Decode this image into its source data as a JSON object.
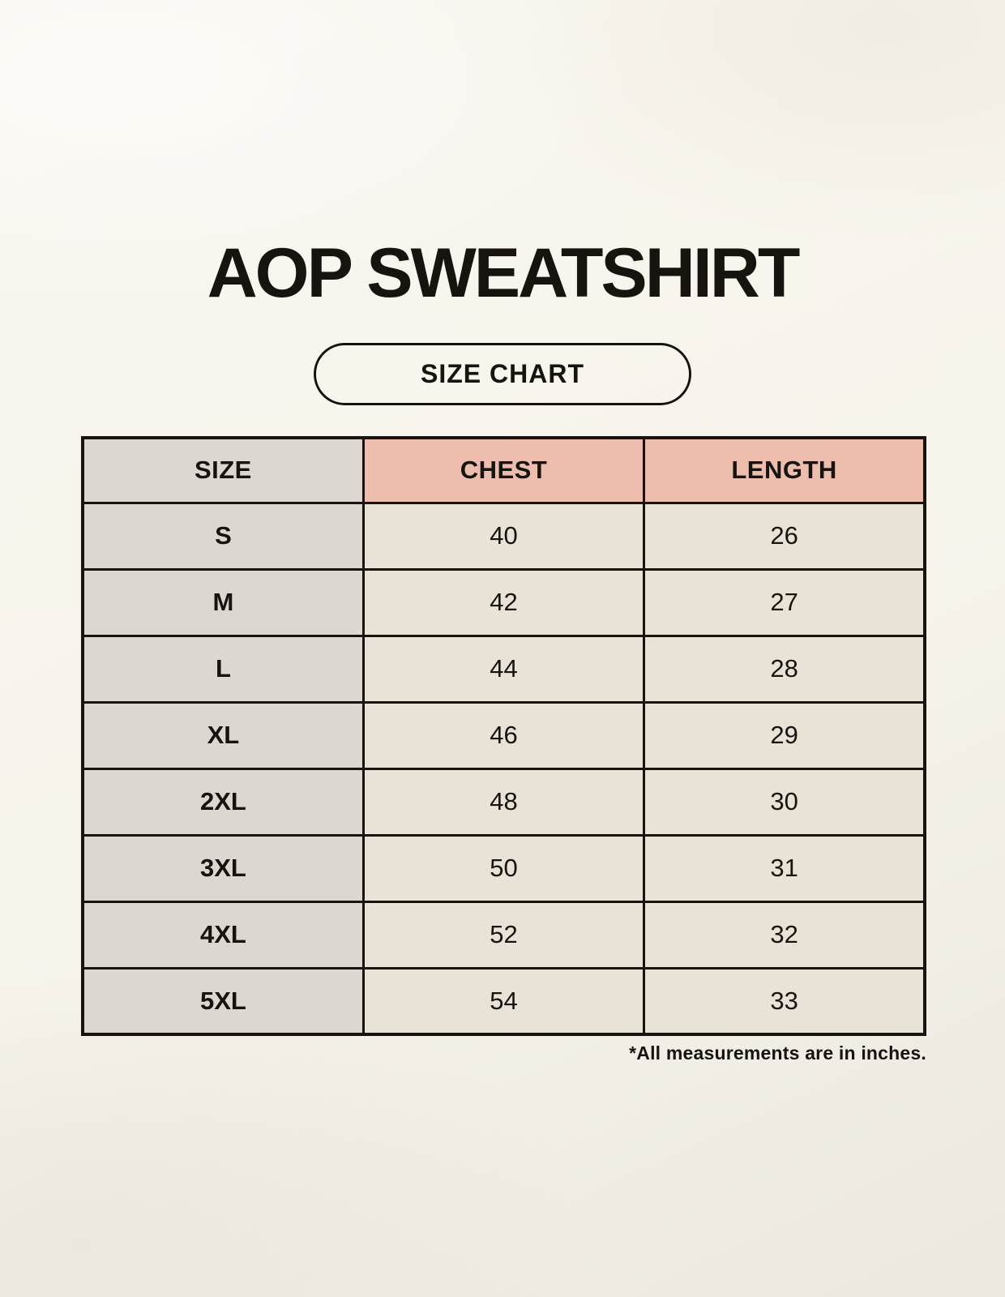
{
  "page": {
    "title": "AOP SWEATSHIRT",
    "size_chart_label": "SIZE CHART",
    "footnote": "*All measurements are in inches."
  },
  "colors": {
    "page_background": "#f7f4ec",
    "header_accent_pink": "#edbeae",
    "size_column_gray": "#ddd7d1",
    "cell_cream": "#e9e3d7",
    "border_and_text": "#17140f"
  },
  "chart_data": {
    "type": "table",
    "title": "AOP SWEATSHIRT",
    "columns": [
      "SIZE",
      "CHEST",
      "LENGTH"
    ],
    "rows": [
      {
        "size": "S",
        "chest": "40",
        "length": "26"
      },
      {
        "size": "M",
        "chest": "42",
        "length": "27"
      },
      {
        "size": "L",
        "chest": "44",
        "length": "28"
      },
      {
        "size": "XL",
        "chest": "46",
        "length": "29"
      },
      {
        "size": "2XL",
        "chest": "48",
        "length": "30"
      },
      {
        "size": "3XL",
        "chest": "50",
        "length": "31"
      },
      {
        "size": "4XL",
        "chest": "52",
        "length": "32"
      },
      {
        "size": "5XL",
        "chest": "54",
        "length": "33"
      }
    ]
  }
}
